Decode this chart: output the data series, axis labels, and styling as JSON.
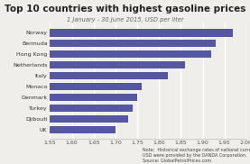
{
  "title": "Top 10 countries with highest gasoline prices",
  "subtitle": "1 January - 30 June 2015, USD per liter",
  "note": "Note:  Historical exchange rates of national currencies to\nUSD were provided by the OANDA Corporation.\nSource: GlobalPetrolPrices.com",
  "countries": [
    "Norway",
    "Bermuda",
    "Hong Kong",
    "Netherlands",
    "Italy",
    "Monaco",
    "Denmark",
    "Turkey",
    "Djibouti",
    "UK"
  ],
  "values": [
    1.97,
    1.93,
    1.92,
    1.86,
    1.82,
    1.76,
    1.75,
    1.74,
    1.73,
    1.7
  ],
  "bar_color": "#5558a0",
  "bg_color": "#f0eeea",
  "grid_color": "#ffffff",
  "xlim": [
    1.55,
    2.0
  ],
  "xticks": [
    1.55,
    1.6,
    1.65,
    1.7,
    1.75,
    1.8,
    1.85,
    1.9,
    1.95,
    2.0
  ],
  "title_fontsize": 7.5,
  "subtitle_fontsize": 4.8,
  "label_fontsize": 4.5,
  "tick_fontsize": 4.5,
  "note_fontsize": 3.5
}
